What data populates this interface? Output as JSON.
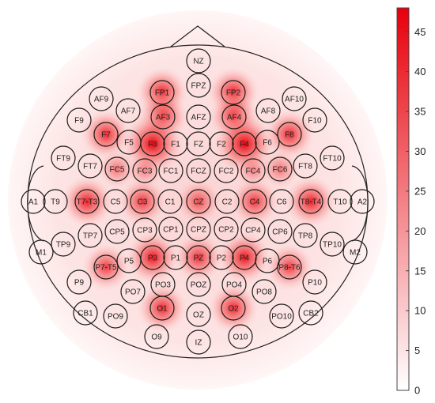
{
  "chart_data": {
    "type": "heatmap",
    "colorbar": {
      "min": 0,
      "max": 48,
      "ticks": [
        0,
        5,
        10,
        15,
        20,
        25,
        30,
        35,
        40,
        45
      ],
      "colors": {
        "low": "#ffffff",
        "high": "#e8000b"
      }
    },
    "electrodes": [
      {
        "name": "NZ",
        "value": 0
      },
      {
        "name": "FPZ",
        "value": 0
      },
      {
        "name": "FP1",
        "value": 30
      },
      {
        "name": "FP2",
        "value": 30
      },
      {
        "name": "AF9",
        "value": 0
      },
      {
        "name": "AF7",
        "value": 0
      },
      {
        "name": "AF3",
        "value": 28
      },
      {
        "name": "AFZ",
        "value": 0
      },
      {
        "name": "AF4",
        "value": 28
      },
      {
        "name": "AF8",
        "value": 0
      },
      {
        "name": "AF10",
        "value": 0
      },
      {
        "name": "F9",
        "value": 0
      },
      {
        "name": "F7",
        "value": 28
      },
      {
        "name": "F5",
        "value": 0
      },
      {
        "name": "F3",
        "value": 46
      },
      {
        "name": "F1",
        "value": 0
      },
      {
        "name": "FZ",
        "value": 0
      },
      {
        "name": "F2",
        "value": 0
      },
      {
        "name": "F4",
        "value": 46
      },
      {
        "name": "F6",
        "value": 0
      },
      {
        "name": "F8",
        "value": 28
      },
      {
        "name": "F10",
        "value": 0
      },
      {
        "name": "FT9",
        "value": 0
      },
      {
        "name": "FT7",
        "value": 0
      },
      {
        "name": "FC5",
        "value": 12
      },
      {
        "name": "FC3",
        "value": 8
      },
      {
        "name": "FC1",
        "value": 0
      },
      {
        "name": "FCZ",
        "value": 0
      },
      {
        "name": "FC2",
        "value": 0
      },
      {
        "name": "FC4",
        "value": 8
      },
      {
        "name": "FC6",
        "value": 12
      },
      {
        "name": "FT8",
        "value": 0
      },
      {
        "name": "FT10",
        "value": 0
      },
      {
        "name": "A1",
        "value": 0
      },
      {
        "name": "T9",
        "value": 0
      },
      {
        "name": "T7-T3",
        "value": 30
      },
      {
        "name": "C5",
        "value": 0
      },
      {
        "name": "C3",
        "value": 25
      },
      {
        "name": "C1",
        "value": 0
      },
      {
        "name": "CZ",
        "value": 20
      },
      {
        "name": "C2",
        "value": 0
      },
      {
        "name": "C4",
        "value": 25
      },
      {
        "name": "C6",
        "value": 0
      },
      {
        "name": "T8-T4",
        "value": 30
      },
      {
        "name": "T10",
        "value": 0
      },
      {
        "name": "A2",
        "value": 0
      },
      {
        "name": "TP9",
        "value": 0
      },
      {
        "name": "TP7",
        "value": 0
      },
      {
        "name": "CP5",
        "value": 0
      },
      {
        "name": "CP3",
        "value": 0
      },
      {
        "name": "CP1",
        "value": 0
      },
      {
        "name": "CPZ",
        "value": 0
      },
      {
        "name": "CP2",
        "value": 0
      },
      {
        "name": "CP4",
        "value": 0
      },
      {
        "name": "CP6",
        "value": 0
      },
      {
        "name": "TP8",
        "value": 0
      },
      {
        "name": "TP10",
        "value": 0
      },
      {
        "name": "M1",
        "value": 0
      },
      {
        "name": "M2",
        "value": 0
      },
      {
        "name": "P7-T5",
        "value": 24
      },
      {
        "name": "P5",
        "value": 0
      },
      {
        "name": "P3",
        "value": 32
      },
      {
        "name": "P1",
        "value": 0
      },
      {
        "name": "PZ",
        "value": 26
      },
      {
        "name": "P2",
        "value": 0
      },
      {
        "name": "P4",
        "value": 32
      },
      {
        "name": "P6",
        "value": 0
      },
      {
        "name": "P8-T6",
        "value": 24
      },
      {
        "name": "P9",
        "value": 0
      },
      {
        "name": "P10",
        "value": 0
      },
      {
        "name": "PO7",
        "value": 0
      },
      {
        "name": "PO3",
        "value": 0
      },
      {
        "name": "POZ",
        "value": 0
      },
      {
        "name": "PO4",
        "value": 0
      },
      {
        "name": "PO8",
        "value": 0
      },
      {
        "name": "PO9",
        "value": 0
      },
      {
        "name": "PO10",
        "value": 0
      },
      {
        "name": "CB1",
        "value": 0
      },
      {
        "name": "CB2",
        "value": 0
      },
      {
        "name": "O1",
        "value": 28
      },
      {
        "name": "OZ",
        "value": 0
      },
      {
        "name": "O2",
        "value": 28
      },
      {
        "name": "O9",
        "value": 0
      },
      {
        "name": "IZ",
        "value": 0
      },
      {
        "name": "O10",
        "value": 0
      }
    ]
  }
}
